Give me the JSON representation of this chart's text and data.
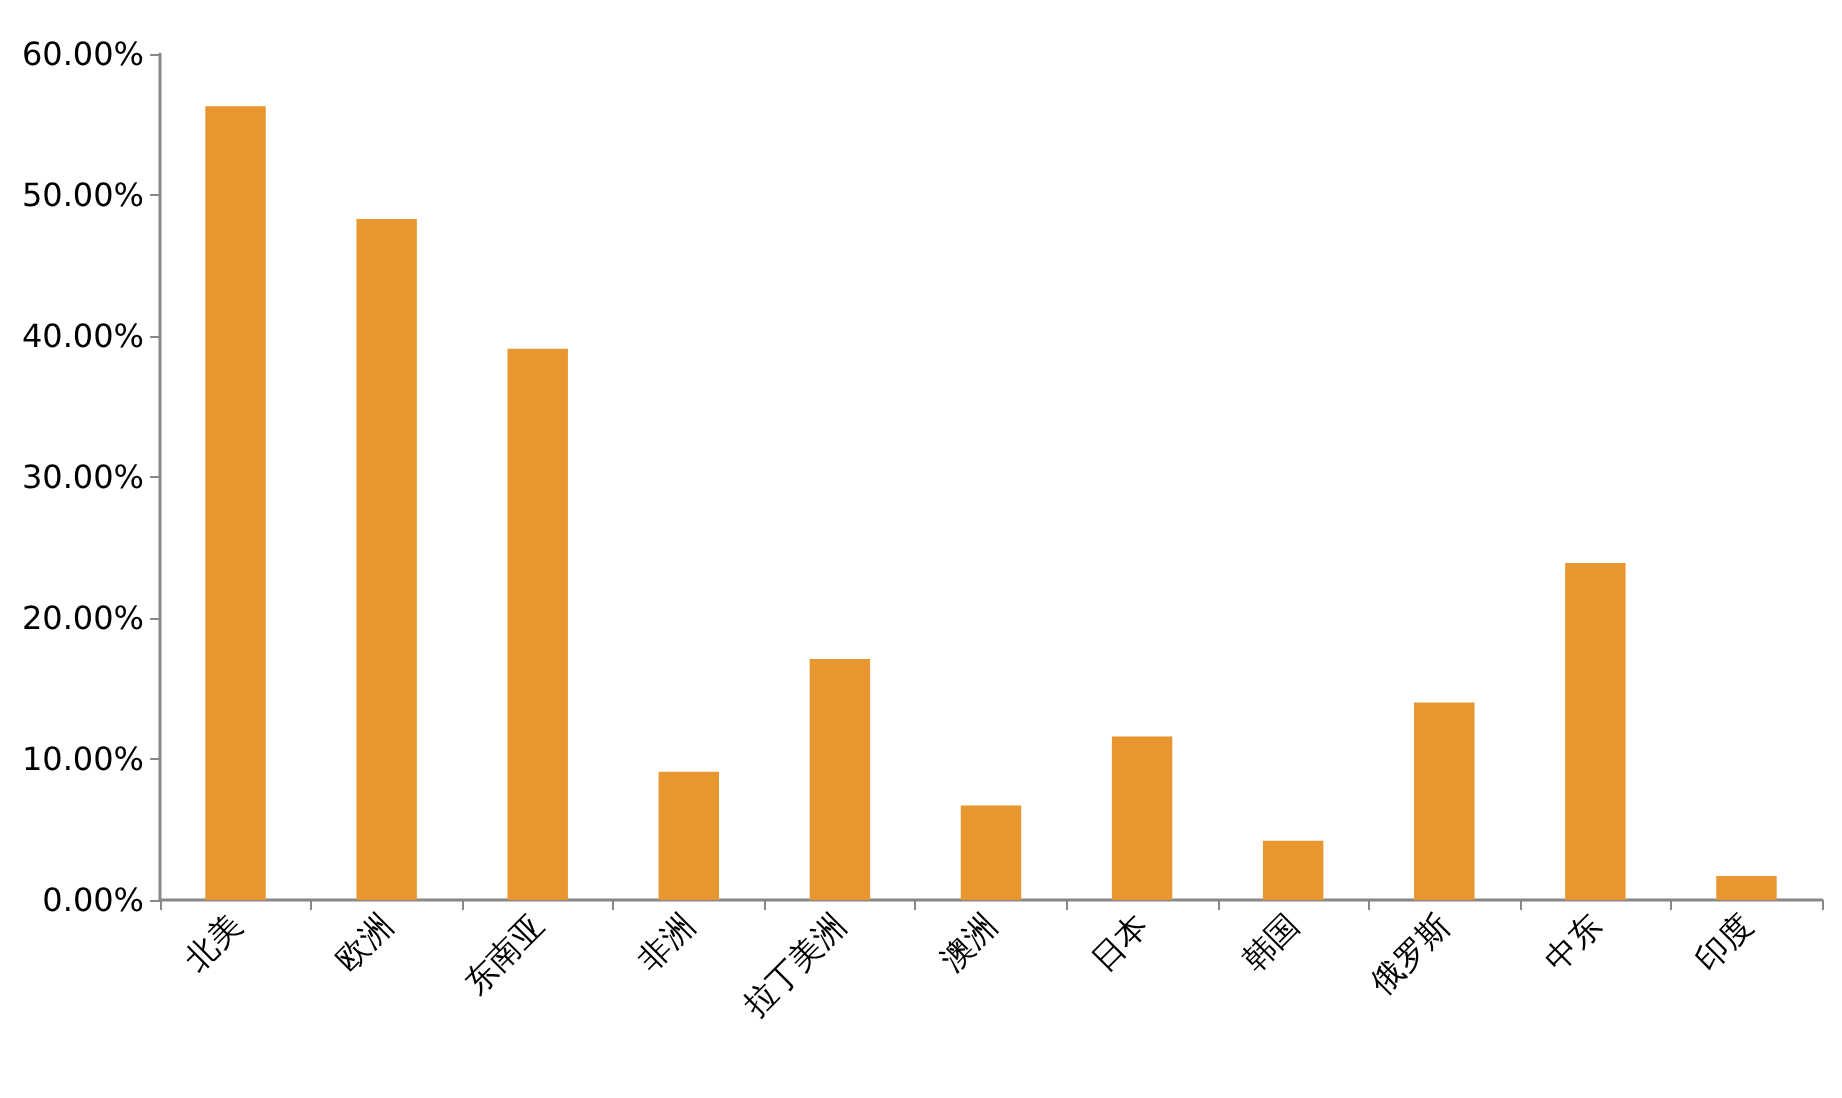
{
  "chart_data": {
    "type": "bar",
    "categories": [
      "北美",
      "欧洲",
      "东南亚",
      "非洲",
      "拉丁美洲",
      "澳洲",
      "日本",
      "韩国",
      "俄罗斯",
      "中东",
      "印度"
    ],
    "values": [
      56.3,
      48.3,
      39.1,
      9.1,
      17.1,
      6.7,
      11.6,
      4.2,
      14.0,
      23.9,
      1.7
    ],
    "color": "#e8962f",
    "ylim": [
      0,
      60
    ],
    "yticks": [
      {
        "value": 0,
        "label": "0.00%"
      },
      {
        "value": 10,
        "label": "10.00%"
      },
      {
        "value": 20,
        "label": "20.00%"
      },
      {
        "value": 30,
        "label": "30.00%"
      },
      {
        "value": 40,
        "label": "40.00%"
      },
      {
        "value": 50,
        "label": "50.00%"
      },
      {
        "value": 60,
        "label": "60.00%"
      }
    ],
    "grid": false
  }
}
